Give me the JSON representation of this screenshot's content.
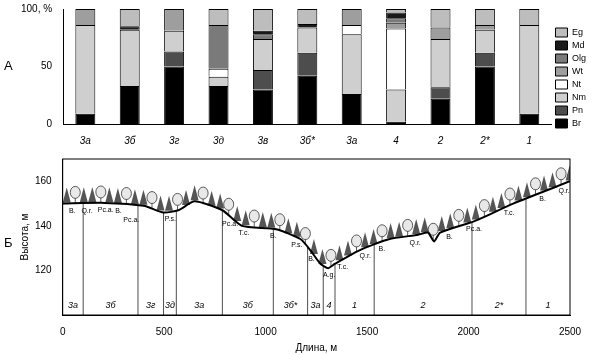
{
  "chart_data": [
    {
      "type": "bar",
      "panel_label": "А",
      "stacked": true,
      "grid": false,
      "legend": "right",
      "categories": [
        "3а",
        "3б",
        "3г",
        "3д",
        "3в",
        "3б*",
        "3а",
        "4",
        "2",
        "2*",
        "1"
      ],
      "series": [
        {
          "name": "Br",
          "color": "#000000",
          "values": [
            9,
            33,
            50,
            33,
            30,
            42,
            26,
            2,
            22,
            50,
            9
          ]
        },
        {
          "name": "Pn",
          "color": "#4d4d4d",
          "values": [
            0,
            0,
            13,
            0,
            17,
            20,
            0,
            0,
            10,
            12,
            0
          ]
        },
        {
          "name": "Nm",
          "color": "#cfcfcf",
          "values": [
            77,
            49,
            18,
            8,
            27,
            22,
            52,
            28,
            42,
            20,
            77
          ]
        },
        {
          "name": "Nt",
          "color": "#ffffff",
          "values": [
            0,
            0,
            0,
            7,
            0,
            0,
            8,
            53,
            0,
            0,
            0
          ]
        },
        {
          "name": "Wt",
          "color": "#9e9e9e",
          "values": [
            14,
            0,
            19,
            0,
            0,
            0,
            14,
            5,
            10,
            4,
            0
          ]
        },
        {
          "name": "Olg",
          "color": "#7a7a7a",
          "values": [
            0,
            0,
            0,
            38,
            4,
            0,
            0,
            4,
            0,
            0,
            0
          ]
        },
        {
          "name": "Md",
          "color": "#1a1a1a",
          "values": [
            0,
            3,
            0,
            0,
            3,
            3,
            0,
            5,
            0,
            0,
            0
          ]
        },
        {
          "name": "Eg",
          "color": "#bdbdbd",
          "values": [
            0,
            15,
            0,
            14,
            19,
            13,
            0,
            3,
            16,
            14,
            14
          ]
        }
      ],
      "ylim": [
        0,
        100
      ],
      "yticks": [
        0,
        50,
        {
          "value": 100,
          "label": "100, %"
        }
      ]
    },
    {
      "type": "line",
      "panel_label": "Б",
      "grid": false,
      "color": "#000000",
      "x_label": "Длина, м",
      "y_label": "Высота, м",
      "x": [
        0,
        207,
        400,
        497,
        570,
        650,
        787,
        883,
        1052,
        1173,
        1221,
        1270,
        1308,
        1342,
        1462,
        1607,
        1752,
        1800,
        1830,
        1860,
        2026,
        2220,
        2500
      ],
      "values": [
        150,
        150.3,
        149,
        146,
        147,
        151,
        147,
        140,
        138.5,
        134,
        129,
        123,
        121,
        123,
        129,
        134,
        136,
        137,
        133,
        137,
        142,
        150,
        160
      ],
      "xlim": [
        0,
        2500
      ],
      "xticks": [
        0,
        500,
        1000,
        1500,
        2000,
        2500
      ],
      "ylim": [
        100,
        170
      ],
      "yticks": [
        120,
        140,
        160
      ],
      "annotations": [
        {
          "x": 48,
          "text": "B."
        },
        {
          "x": 120,
          "text": "Q.r."
        },
        {
          "x": 212,
          "text": "Pc.a."
        },
        {
          "x": 275,
          "text": "B."
        },
        {
          "x": 338,
          "text": "Pc.a."
        },
        {
          "x": 531,
          "text": "P.s."
        },
        {
          "x": 825,
          "text": "Pc.a."
        },
        {
          "x": 893,
          "text": "T.c."
        },
        {
          "x": 1038,
          "text": "B."
        },
        {
          "x": 1154,
          "text": "P.s."
        },
        {
          "x": 1226,
          "text": "B."
        },
        {
          "x": 1313,
          "text": "A.g."
        },
        {
          "x": 1380,
          "text": "T.c."
        },
        {
          "x": 1491,
          "text": "Q.r."
        },
        {
          "x": 1573,
          "text": "B."
        },
        {
          "x": 1737,
          "text": "Q.r."
        },
        {
          "x": 1906,
          "text": "B."
        },
        {
          "x": 2027,
          "text": "Pc.a."
        },
        {
          "x": 2200,
          "text": "T.c."
        },
        {
          "x": 2365,
          "text": "B."
        },
        {
          "x": 2471,
          "text": "Q.r."
        }
      ],
      "zone_bounds": [
        101,
        371,
        497,
        560,
        787,
        1038,
        1207,
        1284,
        1342,
        1535,
        2017,
        2283
      ],
      "zone_labels": [
        "3а",
        "3б",
        "3г",
        "3д",
        "3а",
        "3б",
        "3б*",
        "3а",
        "4",
        "1",
        "2",
        "2*",
        "1"
      ]
    }
  ]
}
